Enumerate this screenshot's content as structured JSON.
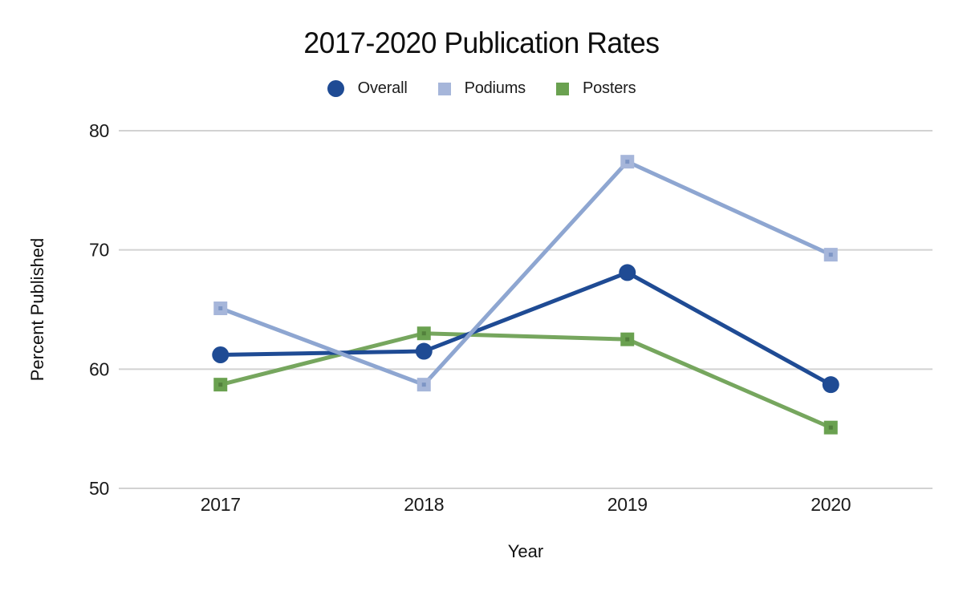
{
  "chart_data": {
    "type": "line",
    "title": "2017-2020 Publication Rates",
    "xlabel": "Year",
    "ylabel": "Percent Published",
    "categories": [
      "2017",
      "2018",
      "2019",
      "2020"
    ],
    "series": [
      {
        "name": "Overall",
        "marker": "circle",
        "line_color": "#1f4b94",
        "marker_color": "#1f4b94",
        "values": [
          61.2,
          61.5,
          68.1,
          58.7
        ]
      },
      {
        "name": "Podiums",
        "marker": "square",
        "line_color": "#8ea6d1",
        "marker_color": "#a6b6da",
        "dot_color": "#7d95c5",
        "values": [
          65.1,
          58.7,
          77.4,
          69.6
        ]
      },
      {
        "name": "Posters",
        "marker": "square",
        "line_color": "#76a65e",
        "marker_color": "#6aa150",
        "dot_color": "#52803c",
        "values": [
          58.7,
          63.0,
          62.5,
          55.1
        ]
      }
    ],
    "ylim": [
      50,
      80
    ],
    "yticks": [
      50,
      60,
      70,
      80
    ],
    "grid": "horizontal-only",
    "gridline_color": "#d2d2d2",
    "legend_position": "top",
    "draw_order": [
      2,
      0,
      1
    ]
  }
}
